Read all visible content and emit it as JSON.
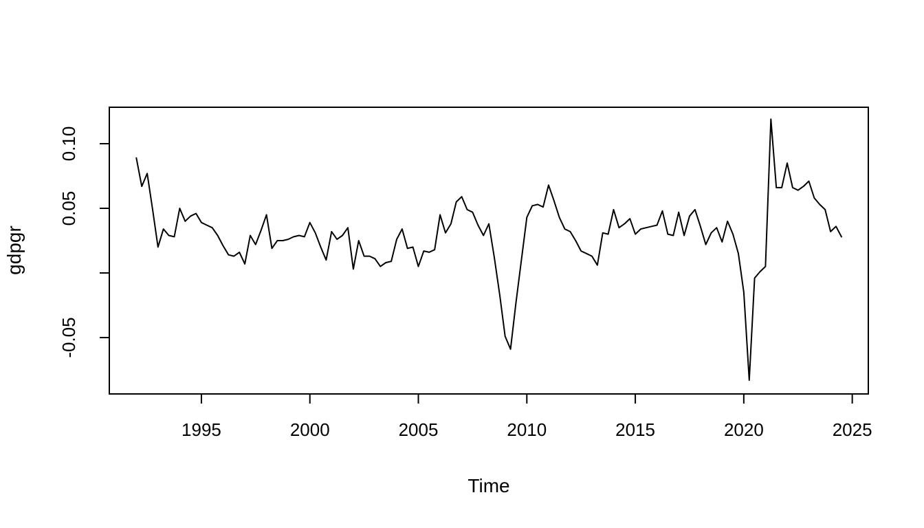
{
  "figure": {
    "background": "#ffffff",
    "line_color": "#000000",
    "frame_color": "#000000"
  },
  "chart_data": {
    "type": "line",
    "title": "",
    "xlabel": "Time",
    "ylabel": "gdpgr",
    "legend": null,
    "grid": false,
    "x_start": 1992.0,
    "x_step": 0.25,
    "x_end": 2024.5,
    "frequency": "quarterly",
    "values": [
      0.089,
      0.067,
      0.077,
      0.049,
      0.02,
      0.034,
      0.029,
      0.028,
      0.05,
      0.04,
      0.044,
      0.046,
      0.039,
      0.037,
      0.035,
      0.029,
      0.021,
      0.014,
      0.013,
      0.016,
      0.007,
      0.029,
      0.022,
      0.033,
      0.045,
      0.019,
      0.025,
      0.025,
      0.026,
      0.028,
      0.029,
      0.028,
      0.039,
      0.031,
      0.02,
      0.01,
      0.032,
      0.026,
      0.029,
      0.035,
      0.003,
      0.025,
      0.013,
      0.013,
      0.011,
      0.005,
      0.008,
      0.009,
      0.026,
      0.034,
      0.019,
      0.02,
      0.005,
      0.017,
      0.016,
      0.018,
      0.045,
      0.031,
      0.038,
      0.055,
      0.059,
      0.049,
      0.047,
      0.037,
      0.029,
      0.038,
      0.012,
      -0.017,
      -0.049,
      -0.059,
      -0.023,
      0.01,
      0.043,
      0.052,
      0.053,
      0.051,
      0.068,
      0.056,
      0.043,
      0.034,
      0.032,
      0.025,
      0.017,
      0.015,
      0.013,
      0.006,
      0.031,
      0.03,
      0.049,
      0.035,
      0.038,
      0.042,
      0.03,
      0.034,
      0.035,
      0.036,
      0.037,
      0.048,
      0.03,
      0.029,
      0.047,
      0.029,
      0.044,
      0.049,
      0.036,
      0.022,
      0.031,
      0.035,
      0.024,
      0.04,
      0.03,
      0.015,
      -0.015,
      -0.083,
      -0.004,
      0.001,
      0.005,
      0.119,
      0.066,
      0.066,
      0.085,
      0.066,
      0.064,
      0.067,
      0.071,
      0.058,
      0.053,
      0.049,
      0.032,
      0.036,
      0.028
    ],
    "x_ticks": [
      {
        "value": 1995,
        "label": "1995"
      },
      {
        "value": 2000,
        "label": "2000"
      },
      {
        "value": 2005,
        "label": "2005"
      },
      {
        "value": 2010,
        "label": "2010"
      },
      {
        "value": 2015,
        "label": "2015"
      },
      {
        "value": 2020,
        "label": "2020"
      },
      {
        "value": 2025,
        "label": "2025"
      }
    ],
    "y_ticks": [
      {
        "value": 0.1,
        "label": "0.10"
      },
      {
        "value": 0.05,
        "label": "0.05"
      },
      {
        "value": 0.0,
        "label": ""
      },
      {
        "value": -0.05,
        "label": "-0.05"
      }
    ],
    "xlim": [
      1990.755,
      2025.74
    ],
    "ylim": [
      -0.0936,
      0.1282
    ]
  }
}
